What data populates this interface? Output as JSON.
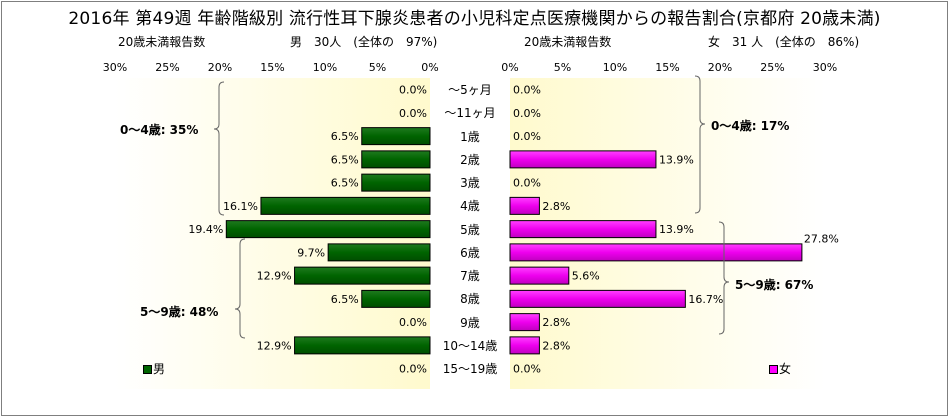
{
  "chart": {
    "title": "2016年 第49週 年齢階級別 流行性耳下腺炎患者の小児科定点医療機関からの報告割合(京都府 20歳未満)",
    "male": {
      "sub_left": "20歳未満報告数",
      "sub_right": "男　30人　(全体の　97%)",
      "legend": "男",
      "group1": "0～4歳: 35%",
      "group2": "5～9歳: 48%"
    },
    "female": {
      "sub_left": "20歳未満報告数",
      "sub_right": "女　31 人　(全体の　86%)",
      "legend": "女",
      "group1": "0～4歳: 17%",
      "group2": "5～9歳: 67%"
    }
  },
  "chart_data": {
    "type": "bar",
    "orientation": "horizontal-butterfly",
    "categories": [
      "～5ヶ月",
      "～11ヶ月",
      "1歳",
      "2歳",
      "3歳",
      "4歳",
      "5歳",
      "6歳",
      "7歳",
      "8歳",
      "9歳",
      "10～14歳",
      "15～19歳"
    ],
    "series": [
      {
        "name": "男",
        "color": "#006400",
        "values": [
          0.0,
          0.0,
          6.5,
          6.5,
          6.5,
          16.1,
          19.4,
          9.7,
          12.9,
          6.5,
          0.0,
          12.9,
          0.0
        ]
      },
      {
        "name": "女",
        "color": "#ff00ff",
        "values": [
          0.0,
          0.0,
          0.0,
          13.9,
          0.0,
          2.8,
          13.9,
          27.8,
          5.6,
          16.7,
          2.8,
          2.8,
          0.0
        ]
      }
    ],
    "xlim": [
      0,
      30
    ],
    "ticks": [
      "30%",
      "25%",
      "20%",
      "15%",
      "10%",
      "5%",
      "0%"
    ],
    "ticks_right": [
      "0%",
      "5%",
      "10%",
      "15%",
      "20%",
      "25%",
      "30%"
    ],
    "value_format": "0.0%"
  }
}
